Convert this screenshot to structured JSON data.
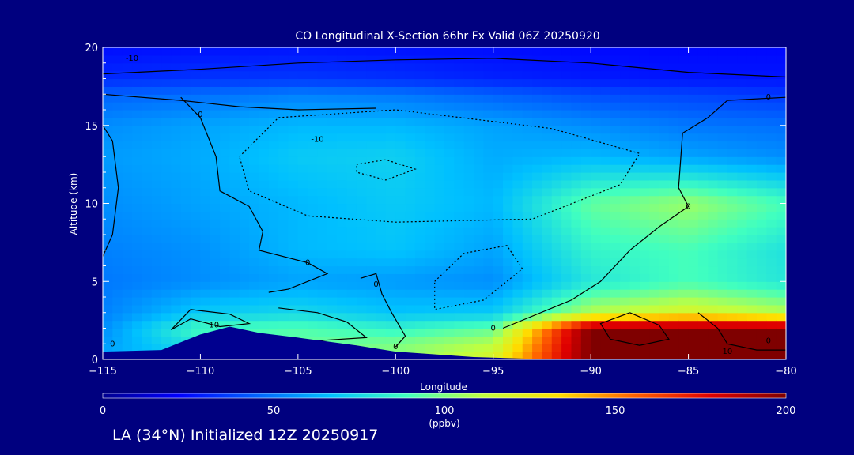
{
  "chart_data": {
    "type": "heatmap",
    "title": "CO Longitudinal X-Section 66hr  Fx Valid 06Z 20250920",
    "xlabel": "Longitude",
    "ylabel": "Altitude (km)",
    "xlim": [
      -115,
      -80
    ],
    "ylim": [
      0,
      20
    ],
    "x_ticks": [
      -115,
      -110,
      -105,
      -100,
      -95,
      -90,
      -85,
      -80
    ],
    "x_tick_labels": [
      "−115",
      "−110",
      "−105",
      "−100",
      "−95",
      "−90",
      "−85",
      "−80"
    ],
    "y_ticks": [
      0,
      5,
      10,
      15,
      20
    ],
    "y_tick_labels": [
      "0",
      "5",
      "10",
      "15",
      "20"
    ],
    "colorbar": {
      "min": 0,
      "max": 200,
      "ticks": [
        0,
        50,
        100,
        150,
        200
      ],
      "tick_labels": [
        "0",
        "50",
        "100",
        "150",
        "200"
      ],
      "units": "(ppbv)",
      "colors": [
        "#00008f",
        "#0000ff",
        "#0060ff",
        "#00c0ff",
        "#40ffc0",
        "#c0ff40",
        "#ffe000",
        "#ff6000",
        "#e00000",
        "#7f0000"
      ]
    },
    "field_x": [
      -115,
      -110,
      -105,
      -100,
      -95,
      -90,
      -85,
      -80
    ],
    "field_y": [
      0,
      1,
      2,
      3,
      5,
      7,
      10,
      13,
      15,
      17,
      18,
      20
    ],
    "field_values": [
      [
        62,
        70,
        95,
        100,
        120,
        200,
        200,
        200
      ],
      [
        58,
        80,
        95,
        100,
        110,
        200,
        200,
        200
      ],
      [
        55,
        90,
        92,
        85,
        95,
        200,
        200,
        200
      ],
      [
        52,
        70,
        75,
        68,
        70,
        110,
        120,
        110
      ],
      [
        50,
        55,
        60,
        58,
        55,
        80,
        90,
        80
      ],
      [
        52,
        56,
        65,
        68,
        60,
        85,
        90,
        78
      ],
      [
        55,
        60,
        65,
        70,
        65,
        95,
        105,
        90
      ],
      [
        58,
        62,
        70,
        72,
        62,
        65,
        60,
        55
      ],
      [
        55,
        60,
        65,
        65,
        60,
        55,
        50,
        48
      ],
      [
        45,
        48,
        52,
        50,
        45,
        40,
        38,
        35
      ],
      [
        32,
        34,
        35,
        33,
        30,
        28,
        27,
        27
      ],
      [
        25,
        26,
        27,
        26,
        25,
        24,
        24,
        24
      ]
    ],
    "terrain": [
      [
        -115,
        0.5
      ],
      [
        -112,
        0.6
      ],
      [
        -110,
        1.6
      ],
      [
        -108.5,
        2.1
      ],
      [
        -107,
        1.7
      ],
      [
        -105,
        1.4
      ],
      [
        -102,
        0.9
      ],
      [
        -100,
        0.5
      ],
      [
        -96,
        0.15
      ],
      [
        -92,
        0
      ],
      [
        -80,
        0
      ]
    ],
    "contour_labels": [
      {
        "text": "0",
        "x": -110.0,
        "y": 15.7
      },
      {
        "text": "0",
        "x": -104.5,
        "y": 6.2
      },
      {
        "text": "0",
        "x": -101.0,
        "y": 4.8
      },
      {
        "text": "0",
        "x": -100.0,
        "y": 0.8
      },
      {
        "text": "0",
        "x": -95.0,
        "y": 2.0
      },
      {
        "text": "0",
        "x": -85.0,
        "y": 9.8
      },
      {
        "text": "0",
        "x": -80.9,
        "y": 16.8
      },
      {
        "text": "0",
        "x": -114.5,
        "y": 1.0
      },
      {
        "text": "0",
        "x": -80.9,
        "y": 1.2
      },
      {
        "text": "-10",
        "x": -113.5,
        "y": 19.3
      },
      {
        "text": "-10",
        "x": -104.0,
        "y": 14.1
      },
      {
        "text": "10",
        "x": -109.3,
        "y": 2.2
      },
      {
        "text": "10",
        "x": -83.0,
        "y": 0.5
      }
    ]
  },
  "footer": "LA (34°N) Initialized 12Z 20250917"
}
